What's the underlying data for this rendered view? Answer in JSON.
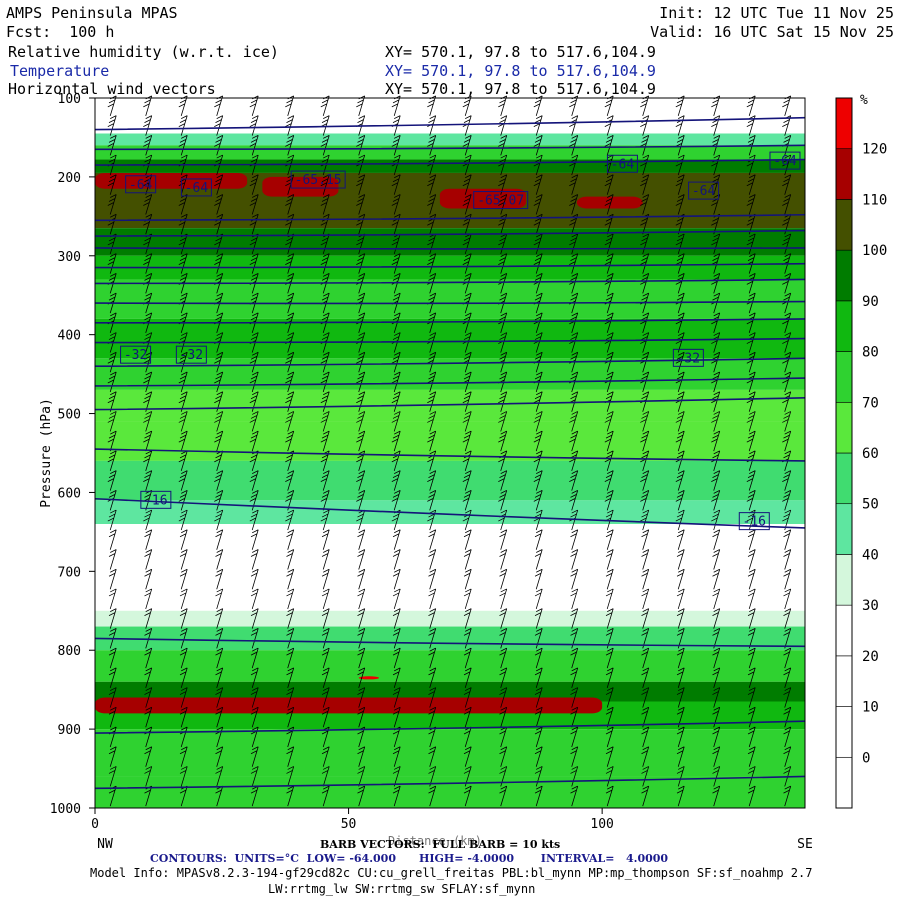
{
  "header": {
    "model": "AMPS Peninsula MPAS",
    "forecast": "Fcst:  100 h",
    "init": "Init: 12 UTC Tue 11 Nov 25",
    "valid": "Valid: 16 UTC Sat 15 Nov 25",
    "fields": [
      {
        "label": "Relative humidity (w.r.t. ice)",
        "xy": "XY= 570.1, 97.8 to 517.6,104.9"
      },
      {
        "label": "Temperature",
        "xy": "XY= 570.1, 97.8 to 517.6,104.9"
      },
      {
        "label": "Horizontal wind vectors",
        "xy": "XY= 570.1, 97.8 to 517.6,104.9"
      }
    ]
  },
  "footer": {
    "barb": "BARB VECTORS:  FULL BARB = 10 kts",
    "x_axis_label": "Distance (km)",
    "contours": "CONTOURS:  UNITS=°C  LOW= -64.000      HIGH= -4.0000       INTERVAL=   4.0000",
    "model_info_1": "Model Info: MPASv8.2.3-194-gf29cd82c CU:cu_grell_freitas PBL:bl_mynn MP:mp_thompson SF:sf_noahmp 2.7",
    "model_info_2": "LW:rrtmg_lw SW:rrtmg_sw SFLAY:sf_mynn"
  },
  "chart_data": {
    "type": "heatmap",
    "title": "Relative humidity (w.r.t. ice)",
    "xlabel": "Distance (km)",
    "ylabel": "Pressure (hPa)",
    "x_range": [
      0,
      140
    ],
    "x_ticks": [
      0,
      50,
      100
    ],
    "x_end_labels": [
      "NW",
      "SE"
    ],
    "y_range_hpa": [
      100,
      1000
    ],
    "y_ticks": [
      100,
      200,
      300,
      400,
      500,
      600,
      700,
      800,
      900,
      1000
    ],
    "y_reversed": true,
    "colorbar": {
      "unit": "%",
      "ticks": [
        0,
        10,
        20,
        30,
        40,
        50,
        60,
        70,
        80,
        90,
        100,
        110,
        120
      ],
      "levels": [
        -10,
        0,
        10,
        20,
        30,
        40,
        50,
        60,
        70,
        80,
        90,
        100,
        110,
        120,
        130
      ],
      "colors": [
        "#ffffff",
        "#ffffff",
        "#ffffff",
        "#ffffff",
        "#d4f7dc",
        "#5ee6a0",
        "#40dc70",
        "#5ae83c",
        "#2fd230",
        "#10b810",
        "#007c00",
        "#445000",
        "#a60000",
        "#ee0000"
      ]
    },
    "rh_layers": [
      {
        "p_top": 100,
        "p_bottom": 145,
        "rh": 20
      },
      {
        "p_top": 145,
        "p_bottom": 160,
        "rh": 45
      },
      {
        "p_top": 160,
        "p_bottom": 178,
        "rh": 75
      },
      {
        "p_top": 178,
        "p_bottom": 195,
        "rh": 95
      },
      {
        "p_top": 195,
        "p_bottom": 265,
        "rh": 105
      },
      {
        "p_top": 265,
        "p_bottom": 300,
        "rh": 95
      },
      {
        "p_top": 300,
        "p_bottom": 330,
        "rh": 85
      },
      {
        "p_top": 330,
        "p_bottom": 380,
        "rh": 75
      },
      {
        "p_top": 380,
        "p_bottom": 430,
        "rh": 85
      },
      {
        "p_top": 430,
        "p_bottom": 470,
        "rh": 78
      },
      {
        "p_top": 470,
        "p_bottom": 510,
        "rh": 68
      },
      {
        "p_top": 510,
        "p_bottom": 560,
        "rh": 62
      },
      {
        "p_top": 560,
        "p_bottom": 610,
        "rh": 55
      },
      {
        "p_top": 610,
        "p_bottom": 640,
        "rh": 40
      },
      {
        "p_top": 640,
        "p_bottom": 750,
        "rh": 15
      },
      {
        "p_top": 750,
        "p_bottom": 770,
        "rh": 35
      },
      {
        "p_top": 770,
        "p_bottom": 800,
        "rh": 55
      },
      {
        "p_top": 800,
        "p_bottom": 840,
        "rh": 75
      },
      {
        "p_top": 840,
        "p_bottom": 865,
        "rh": 95
      },
      {
        "p_top": 865,
        "p_bottom": 900,
        "rh": 85
      },
      {
        "p_top": 900,
        "p_bottom": 960,
        "rh": 78
      },
      {
        "p_top": 960,
        "p_bottom": 1000,
        "rh": 72
      }
    ],
    "rh_maxima": [
      {
        "x": [
          0,
          30
        ],
        "p": [
          195,
          215
        ],
        "rh": 115
      },
      {
        "x": [
          33,
          48
        ],
        "p": [
          200,
          225
        ],
        "rh": 115
      },
      {
        "x": [
          68,
          85
        ],
        "p": [
          215,
          240
        ],
        "rh": 115
      },
      {
        "x": [
          95,
          108
        ],
        "p": [
          225,
          240
        ],
        "rh": 115
      },
      {
        "x": [
          0,
          100
        ],
        "p": [
          860,
          880
        ],
        "rh": 115
      },
      {
        "x": [
          52,
          56
        ],
        "p": [
          833,
          837
        ],
        "rh": 125
      }
    ],
    "temperature_isotherms_c": [
      {
        "value": -64,
        "x": [
          0,
          140
        ],
        "p": [
          140,
          125
        ]
      },
      {
        "value": -64,
        "x": [
          0,
          140
        ],
        "p": [
          165,
          160
        ]
      },
      {
        "value": -64,
        "x": [
          0,
          140
        ],
        "p": [
          185,
          178
        ]
      },
      {
        "value": -64,
        "x": [
          0,
          140
        ],
        "p": [
          255,
          248
        ]
      },
      {
        "value": -60,
        "x": [
          0,
          140
        ],
        "p": [
          275,
          268
        ]
      },
      {
        "value": -56,
        "x": [
          0,
          140
        ],
        "p": [
          290,
          290
        ]
      },
      {
        "value": -52,
        "x": [
          0,
          140
        ],
        "p": [
          315,
          310
        ]
      },
      {
        "value": -48,
        "x": [
          0,
          140
        ],
        "p": [
          335,
          330
        ]
      },
      {
        "value": -44,
        "x": [
          0,
          140
        ],
        "p": [
          360,
          358
        ]
      },
      {
        "value": -40,
        "x": [
          0,
          140
        ],
        "p": [
          385,
          380
        ]
      },
      {
        "value": -36,
        "x": [
          0,
          140
        ],
        "p": [
          410,
          405
        ]
      },
      {
        "value": -32,
        "x": [
          0,
          140
        ],
        "p": [
          440,
          430
        ]
      },
      {
        "value": -28,
        "x": [
          0,
          140
        ],
        "p": [
          465,
          455
        ]
      },
      {
        "value": -24,
        "x": [
          0,
          140
        ],
        "p": [
          495,
          480
        ]
      },
      {
        "value": -20,
        "x": [
          0,
          140
        ],
        "p": [
          545,
          560
        ]
      },
      {
        "value": -16,
        "x": [
          0,
          140
        ],
        "p": [
          608,
          645
        ]
      },
      {
        "value": -12,
        "x": [
          0,
          140
        ],
        "p": [
          785,
          795
        ]
      },
      {
        "value": -8,
        "x": [
          0,
          140
        ],
        "p": [
          905,
          890
        ]
      },
      {
        "value": -4,
        "x": [
          0,
          140
        ],
        "p": [
          975,
          960
        ]
      }
    ],
    "contour_labels": [
      {
        "text": "-64",
        "x": 9,
        "p": 210
      },
      {
        "text": "-64",
        "x": 20,
        "p": 214
      },
      {
        "text": "-65.15",
        "x": 44,
        "p": 204
      },
      {
        "text": "-65.07",
        "x": 80,
        "p": 230
      },
      {
        "text": "-64",
        "x": 104,
        "p": 184
      },
      {
        "text": "-64",
        "x": 120,
        "p": 218
      },
      {
        "text": "-64",
        "x": 143,
        "p": 180
      },
      {
        "text": "-32",
        "x": 8,
        "p": 426
      },
      {
        "text": "-32",
        "x": 19,
        "p": 426
      },
      {
        "text": "-32",
        "x": 117,
        "p": 430
      },
      {
        "text": "-16",
        "x": 12,
        "p": 610
      },
      {
        "text": "-16",
        "x": 130,
        "p": 637
      }
    ],
    "wind_barbs": {
      "full_barb_kts": 10,
      "x_spacing_km": 7,
      "p_spacing_hpa": 25
    }
  }
}
